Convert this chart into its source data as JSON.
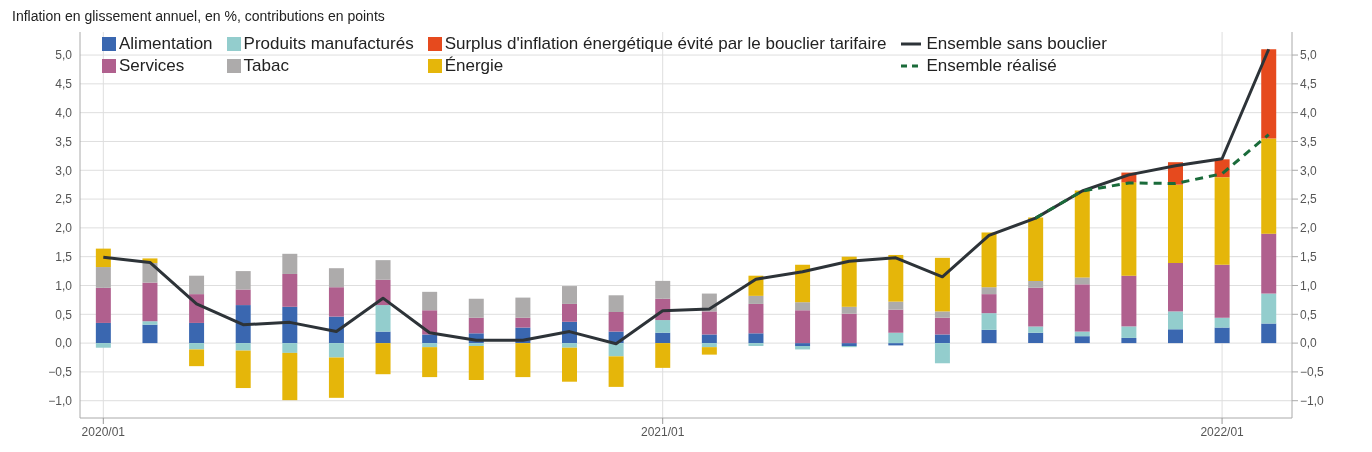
{
  "chart_data": {
    "type": "bar",
    "title": "Inflation en glissement annuel, en %, contributions en points",
    "stacked": true,
    "categories": [
      "2020/01",
      null,
      null,
      null,
      null,
      null,
      null,
      null,
      null,
      null,
      null,
      null,
      "2021/01",
      null,
      null,
      null,
      null,
      null,
      null,
      null,
      null,
      null,
      null,
      null,
      "2022/01",
      null
    ],
    "series": [
      {
        "name": "Alimentation",
        "color": "#3a67b0",
        "values": [
          0.35,
          0.32,
          0.35,
          0.66,
          0.63,
          0.46,
          0.2,
          0.15,
          0.17,
          0.27,
          0.37,
          0.2,
          0.18,
          0.15,
          0.17,
          -0.05,
          -0.05,
          -0.04,
          0.15,
          0.23,
          0.18,
          0.12,
          0.09,
          0.24,
          0.27,
          0.34
        ]
      },
      {
        "name": "Produits manufacturés",
        "color": "#93cdcd",
        "values": [
          -0.08,
          0.06,
          -0.11,
          -0.13,
          -0.17,
          -0.25,
          0.46,
          -0.07,
          -0.05,
          null,
          -0.08,
          -0.23,
          0.22,
          -0.07,
          -0.05,
          -0.06,
          -0.02,
          0.18,
          -0.35,
          0.29,
          0.11,
          0.08,
          0.2,
          0.31,
          0.17,
          0.52
        ]
      },
      {
        "name": "Services",
        "color": "#b0608e",
        "values": [
          0.61,
          0.67,
          0.5,
          0.27,
          0.57,
          0.51,
          0.44,
          0.42,
          0.27,
          0.17,
          0.31,
          0.34,
          0.37,
          0.4,
          0.51,
          0.57,
          0.51,
          0.4,
          0.29,
          0.33,
          0.67,
          0.82,
          0.88,
          0.84,
          0.92,
          1.04
        ]
      },
      {
        "name": "Tabac",
        "color": "#adabab",
        "values": [
          0.36,
          0.34,
          0.32,
          0.32,
          0.35,
          0.33,
          0.34,
          0.32,
          0.33,
          0.35,
          0.31,
          0.29,
          0.31,
          0.31,
          0.14,
          0.14,
          0.12,
          0.14,
          0.11,
          0.12,
          0.12,
          0.12,
          0,
          0,
          0,
          0
        ]
      },
      {
        "name": "Énergie",
        "color": "#e5b60a",
        "values": [
          0.32,
          0.08,
          -0.29,
          -0.65,
          -0.82,
          -0.7,
          -0.54,
          -0.52,
          -0.59,
          -0.59,
          -0.59,
          -0.53,
          -0.43,
          -0.13,
          0.35,
          0.65,
          0.87,
          0.81,
          0.93,
          0.95,
          1.1,
          1.51,
          1.62,
          1.36,
          1.52,
          1.65
        ]
      },
      {
        "name": "Surplus d'inflation énergétique évité par le bouclier tarifaire",
        "color": "#e64a1e",
        "values": [
          0,
          0,
          0,
          0,
          0,
          0,
          0,
          0,
          0,
          0,
          0,
          0,
          0,
          0,
          0,
          0,
          0,
          0,
          0,
          0,
          0,
          0,
          0.17,
          0.39,
          0.31,
          1.55
        ]
      },
      {
        "name": "Ensemble sans bouclier",
        "type": "line",
        "color": "#2d3338",
        "line_style": "solid",
        "values": [
          1.49,
          1.4,
          0.68,
          0.32,
          0.36,
          0.2,
          0.78,
          0.18,
          0.05,
          0.05,
          0.2,
          -0.01,
          0.56,
          0.59,
          1.11,
          1.24,
          1.42,
          1.48,
          1.15,
          1.87,
          2.17,
          2.64,
          2.92,
          3.08,
          3.2,
          5.1
        ]
      },
      {
        "name": "Ensemble réalisé",
        "type": "line",
        "color": "#1a6b3a",
        "line_style": "dashed",
        "values": [
          null,
          null,
          null,
          null,
          null,
          null,
          null,
          null,
          null,
          null,
          null,
          null,
          null,
          null,
          null,
          null,
          null,
          null,
          null,
          null,
          2.17,
          2.64,
          2.78,
          2.77,
          2.94,
          3.62
        ]
      }
    ],
    "ylim": [
      -1.3,
      5.4
    ],
    "yticks": [
      {
        "value": -1,
        "label": "−1,0"
      },
      {
        "value": -0.5,
        "label": "−0,5"
      },
      {
        "value": 0,
        "label": "0,0"
      },
      {
        "value": 0.5,
        "label": "0,5"
      },
      {
        "value": 1,
        "label": "1,0"
      },
      {
        "value": 1.5,
        "label": "1,5"
      },
      {
        "value": 2,
        "label": "2,0"
      },
      {
        "value": 2.5,
        "label": "2,5"
      },
      {
        "value": 3,
        "label": "3,0"
      },
      {
        "value": 3.5,
        "label": "3,5"
      },
      {
        "value": 4,
        "label": "4,0"
      },
      {
        "value": 4.5,
        "label": "4,5"
      },
      {
        "value": 5,
        "label": "5,0"
      }
    ],
    "y2lim": [
      -1.3,
      5.4
    ],
    "y2ticks": [
      {
        "value": -1,
        "label": "−1,0"
      },
      {
        "value": -0.5,
        "label": "−0,5"
      },
      {
        "value": 0,
        "label": "0,0"
      },
      {
        "value": 0.5,
        "label": "0,5"
      },
      {
        "value": 1,
        "label": "1,0"
      },
      {
        "value": 1.5,
        "label": "1,5"
      },
      {
        "value": 2,
        "label": "2,0"
      },
      {
        "value": 2.5,
        "label": "2,5"
      },
      {
        "value": 3,
        "label": "3,0"
      },
      {
        "value": 3.5,
        "label": "3,5"
      },
      {
        "value": 4,
        "label": "4,0"
      },
      {
        "value": 4.5,
        "label": "4,5"
      },
      {
        "value": 5,
        "label": "5,0"
      }
    ],
    "grid": true,
    "legend": "top left",
    "marker": "none"
  }
}
